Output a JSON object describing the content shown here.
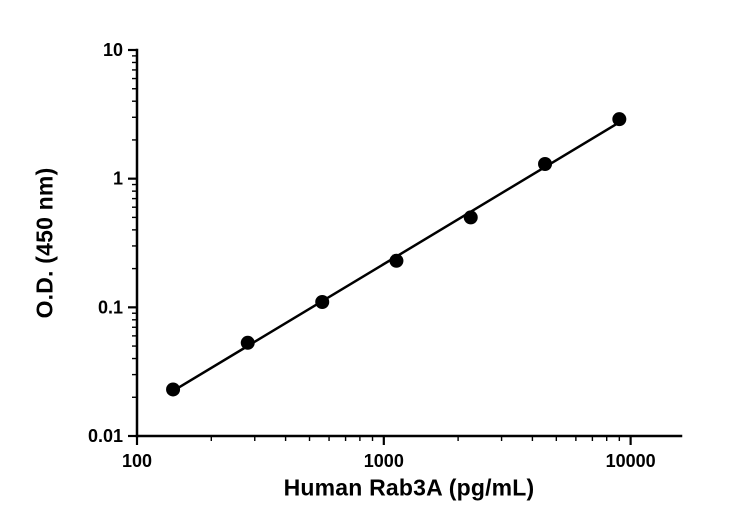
{
  "chart_data": {
    "type": "scatter",
    "title": "",
    "xlabel": "Human Rab3A (pg/mL)",
    "ylabel": "O.D. (450 nm)",
    "x_scale": "log",
    "y_scale": "log",
    "xlim": [
      100,
      16000
    ],
    "ylim": [
      0.01,
      10
    ],
    "x_ticks": [
      100,
      1000,
      10000
    ],
    "y_ticks": [
      0.01,
      0.1,
      1,
      10
    ],
    "grid": false,
    "legend": "none",
    "marker_color": "#000000",
    "line_color": "#000000",
    "axis_color": "#000000",
    "trendline": true,
    "points": [
      {
        "x": 140,
        "y": 0.023
      },
      {
        "x": 281,
        "y": 0.053
      },
      {
        "x": 563,
        "y": 0.11
      },
      {
        "x": 1125,
        "y": 0.23
      },
      {
        "x": 2250,
        "y": 0.5
      },
      {
        "x": 4500,
        "y": 1.3
      },
      {
        "x": 9000,
        "y": 2.9
      }
    ]
  }
}
